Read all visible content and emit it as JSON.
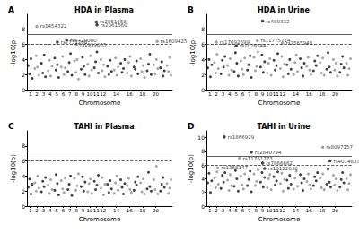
{
  "chart_data": [
    {
      "type": "scatter",
      "panel": "A",
      "title": "HDA in Plasma",
      "x_label": "Chromosome",
      "y_label": "-log10(p)",
      "marker": "circle",
      "colors": [
        "#111111",
        "#8f8f8f"
      ],
      "xlim": [
        0.5,
        22.5
      ],
      "xticks": [
        1,
        2,
        3,
        4,
        5,
        6,
        7,
        8,
        9,
        10,
        11,
        12,
        14,
        16,
        18,
        20
      ],
      "ylim": [
        0,
        10
      ],
      "yticks": [
        0,
        2,
        4,
        6,
        8
      ],
      "reference_lines": [
        {
          "value": 7.3,
          "line_style": "solid"
        },
        {
          "value": 6,
          "line_style": "dashed"
        }
      ],
      "x": [
        0.7,
        0.9,
        1.1,
        1.3,
        1.7,
        1.9,
        2.1,
        2.3,
        2.7,
        2.9,
        3.1,
        3.3,
        3.7,
        3.9,
        4.1,
        4.3,
        4.7,
        4.9,
        5.1,
        5.3,
        5.7,
        5.9,
        6.1,
        6.3,
        6.7,
        6.9,
        7.1,
        7.3,
        7.7,
        7.9,
        8.1,
        8.3,
        8.7,
        8.9,
        9.1,
        9.3,
        9.7,
        9.9,
        10.1,
        10.3,
        10.7,
        10.9,
        11.1,
        11.3,
        11.7,
        11.9,
        12.1,
        12.3,
        12.7,
        12.9,
        13.1,
        13.3,
        13.7,
        13.9,
        14.1,
        14.3,
        14.7,
        14.9,
        15.1,
        15.3,
        15.7,
        15.9,
        16.1,
        16.3,
        16.7,
        16.9,
        17.1,
        17.3,
        17.7,
        17.9,
        18.1,
        18.3,
        18.7,
        18.9,
        19.1,
        19.3,
        19.7,
        19.9,
        20.1,
        20.3,
        20.7,
        20.9,
        21.1,
        21.3,
        21.7,
        21.9,
        22.1,
        22.3
      ],
      "values": [
        3.2,
        2.1,
        4.1,
        1.5,
        2.8,
        4.5,
        3.0,
        1.9,
        3.5,
        2.2,
        4.6,
        1.7,
        2.5,
        3.9,
        1.8,
        3.1,
        4.2,
        2.6,
        3.3,
        1.6,
        3.0,
        4.4,
        2.0,
        2.9,
        2.4,
        3.6,
        4.8,
        1.9,
        3.8,
        2.3,
        4.0,
        1.4,
        2.7,
        4.3,
        3.1,
        2.0,
        3.4,
        1.8,
        4.5,
        2.6,
        2.9,
        3.7,
        5.0,
        2.2,
        4.0,
        2.5,
        3.3,
        1.7,
        3.1,
        2.0,
        3.9,
        2.4,
        2.6,
        4.2,
        1.9,
        3.0,
        3.5,
        2.3,
        2.8,
        4.0,
        2.2,
        3.6,
        4.4,
        1.8,
        3.0,
        2.7,
        3.8,
        2.1,
        4.1,
        2.4,
        3.2,
        1.6,
        2.5,
        3.4,
        4.7,
        2.0,
        3.3,
        2.1,
        4.0,
        2.8,
        2.9,
        3.7,
        1.8,
        2.5,
        3.2,
        2.4,
        4.3,
        1.9
      ],
      "annotations": [
        {
          "text": "rs1454322",
          "x": 2.0,
          "y": 8.4
        },
        {
          "text": "rs2061658",
          "x": 11.0,
          "y": 9.0
        },
        {
          "text": "rs2061660",
          "x": 11.1,
          "y": 8.6
        },
        {
          "text": "rs7731200",
          "x": 5.1,
          "y": 6.3
        },
        {
          "text": "rs6720000",
          "x": 6.5,
          "y": 6.6
        },
        {
          "text": "rs1999065",
          "x": 8.0,
          "y": 6.0
        },
        {
          "text": "rs1609425",
          "x": 20.2,
          "y": 6.4
        }
      ]
    },
    {
      "type": "scatter",
      "panel": "B",
      "title": "HDA in Urine",
      "x_label": "Chromosome",
      "y_label": "-log10(p)",
      "marker": "circle",
      "colors": [
        "#111111",
        "#8f8f8f"
      ],
      "xlim": [
        0.5,
        22.5
      ],
      "xticks": [
        1,
        2,
        3,
        4,
        5,
        6,
        7,
        8,
        9,
        10,
        11,
        12,
        14,
        16,
        18,
        20
      ],
      "ylim": [
        0,
        10
      ],
      "yticks": [
        0,
        2,
        4,
        6,
        8
      ],
      "reference_lines": [
        {
          "value": 7.3,
          "line_style": "solid"
        },
        {
          "value": 6,
          "line_style": "dashed"
        }
      ],
      "x": [
        0.7,
        0.9,
        1.1,
        1.3,
        1.7,
        1.9,
        2.1,
        2.3,
        2.7,
        2.9,
        3.1,
        3.3,
        3.7,
        3.9,
        4.1,
        4.3,
        4.7,
        4.9,
        5.1,
        5.3,
        5.7,
        5.9,
        6.1,
        6.3,
        6.7,
        6.9,
        7.1,
        7.3,
        7.7,
        7.9,
        8.1,
        8.3,
        8.7,
        8.9,
        9.1,
        9.3,
        9.7,
        9.9,
        10.1,
        10.3,
        10.7,
        10.9,
        11.1,
        11.3,
        11.7,
        11.9,
        12.1,
        12.3,
        12.7,
        12.9,
        13.1,
        13.3,
        13.7,
        13.9,
        14.1,
        14.3,
        14.7,
        14.9,
        15.1,
        15.3,
        15.7,
        15.9,
        16.1,
        16.3,
        16.7,
        16.9,
        17.1,
        17.3,
        17.7,
        17.9,
        18.1,
        18.3,
        18.7,
        18.9,
        19.1,
        19.3,
        19.7,
        19.9,
        20.1,
        20.3,
        20.7,
        20.9,
        21.1,
        21.3,
        21.7,
        21.9,
        22.1,
        22.3
      ],
      "values": [
        2.9,
        4.0,
        1.7,
        3.3,
        3.6,
        2.2,
        4.7,
        2.8,
        2.1,
        3.9,
        3.0,
        4.4,
        3.2,
        1.9,
        4.1,
        2.6,
        2.4,
        4.9,
        3.5,
        1.8,
        3.8,
        2.7,
        2.0,
        4.2,
        2.6,
        3.3,
        4.5,
        1.6,
        4.3,
        2.5,
        3.1,
        5.0,
        3.0,
        4.6,
        2.3,
        3.7,
        2.2,
        3.5,
        4.1,
        1.9,
        3.9,
        2.6,
        3.2,
        4.8,
        2.8,
        4.4,
        1.7,
        3.4,
        3.3,
        2.1,
        4.0,
        2.7,
        2.0,
        3.6,
        4.6,
        2.4,
        4.1,
        2.9,
        1.8,
        3.5,
        3.1,
        4.3,
        2.6,
        2.0,
        2.5,
        3.8,
        3.2,
        4.5,
        3.6,
        2.2,
        4.2,
        1.9,
        2.7,
        4.9,
        3.0,
        2.3,
        4.0,
        2.6,
        3.5,
        1.8,
        2.3,
        3.4,
        4.4,
        2.9,
        3.5,
        1.9,
        2.8,
        4.1
      ],
      "annotations": [
        {
          "text": "rs17692699",
          "x": 2.0,
          "y": 6.3
        },
        {
          "text": "rs1026544",
          "x": 5.0,
          "y": 5.8
        },
        {
          "text": "rs11775714",
          "x": 8.2,
          "y": 6.5
        },
        {
          "text": "rs489332",
          "x": 9.0,
          "y": 9.1
        },
        {
          "text": "rs2565949",
          "x": 12.0,
          "y": 6.2
        }
      ]
    },
    {
      "type": "scatter",
      "panel": "C",
      "title": "TAHI in Plasma",
      "x_label": "Chromosome",
      "y_label": "-log10(p)",
      "marker": "circle",
      "colors": [
        "#111111",
        "#8f8f8f"
      ],
      "xlim": [
        0.5,
        22.5
      ],
      "xticks": [
        1,
        2,
        3,
        4,
        5,
        6,
        7,
        8,
        9,
        10,
        11,
        12,
        14,
        16,
        18,
        20
      ],
      "ylim": [
        0,
        10
      ],
      "yticks": [
        0,
        2,
        4,
        6,
        8
      ],
      "reference_lines": [
        {
          "value": 7.3,
          "line_style": "solid"
        },
        {
          "value": 6,
          "line_style": "dashed"
        }
      ],
      "x": [
        0.7,
        0.9,
        1.1,
        1.3,
        1.7,
        1.9,
        2.1,
        2.3,
        2.7,
        2.9,
        3.1,
        3.3,
        3.7,
        3.9,
        4.1,
        4.3,
        4.7,
        4.9,
        5.1,
        5.3,
        5.7,
        5.9,
        6.1,
        6.3,
        6.7,
        6.9,
        7.1,
        7.3,
        7.7,
        7.9,
        8.1,
        8.3,
        8.7,
        8.9,
        9.1,
        9.3,
        9.7,
        9.9,
        10.1,
        10.3,
        10.7,
        10.9,
        11.1,
        11.3,
        11.7,
        11.9,
        12.1,
        12.3,
        12.7,
        12.9,
        13.1,
        13.3,
        13.7,
        13.9,
        14.1,
        14.3,
        14.7,
        14.9,
        15.1,
        15.3,
        15.7,
        15.9,
        16.1,
        16.3,
        16.7,
        16.9,
        17.1,
        17.3,
        17.7,
        17.9,
        18.1,
        18.3,
        18.7,
        18.9,
        19.1,
        19.3,
        19.7,
        19.9,
        20.1,
        20.3,
        20.7,
        20.9,
        21.1,
        21.3,
        21.7,
        21.9,
        22.1,
        22.3
      ],
      "values": [
        2.5,
        3.6,
        1.6,
        2.9,
        3.1,
        2.0,
        4.0,
        2.4,
        1.9,
        3.3,
        2.6,
        3.8,
        2.8,
        1.7,
        3.5,
        2.2,
        2.1,
        4.2,
        3.0,
        1.5,
        3.4,
        2.3,
        1.8,
        3.7,
        2.2,
        2.9,
        4.0,
        1.4,
        3.7,
        2.1,
        2.7,
        4.3,
        2.6,
        3.9,
        2.0,
        3.2,
        1.9,
        3.0,
        3.6,
        1.7,
        3.3,
        2.2,
        2.8,
        4.1,
        2.4,
        3.8,
        1.5,
        2.9,
        2.9,
        1.8,
        3.4,
        2.3,
        1.7,
        3.1,
        4.0,
        2.1,
        3.5,
        2.5,
        1.6,
        3.0,
        2.7,
        3.7,
        2.2,
        1.8,
        2.1,
        3.2,
        2.8,
        3.9,
        3.1,
        1.9,
        3.6,
        1.6,
        2.3,
        4.5,
        2.6,
        2.0,
        3.5,
        2.2,
        5.3,
        1.6,
        2.0,
        2.9,
        3.8,
        2.5,
        3.0,
        1.7,
        2.4,
        3.5
      ],
      "annotations": []
    },
    {
      "type": "scatter",
      "panel": "D",
      "title": "TAHI in Urine",
      "x_label": "Chromosome",
      "y_label": "-log10(p)",
      "marker": "circle",
      "colors": [
        "#111111",
        "#8f8f8f"
      ],
      "xlim": [
        0.5,
        22.5
      ],
      "xticks": [
        1,
        2,
        3,
        4,
        5,
        6,
        7,
        8,
        9,
        10,
        11,
        12,
        14,
        16,
        18,
        20
      ],
      "ylim": [
        0,
        11
      ],
      "yticks": [
        0,
        2,
        4,
        6,
        8,
        10
      ],
      "reference_lines": [
        {
          "value": 7.3,
          "line_style": "solid"
        },
        {
          "value": 6,
          "line_style": "dashed"
        }
      ],
      "x": [
        0.7,
        0.9,
        1.1,
        1.3,
        1.7,
        1.9,
        2.1,
        2.3,
        2.7,
        2.9,
        3.1,
        3.3,
        3.7,
        3.9,
        4.1,
        4.3,
        4.7,
        4.9,
        5.1,
        5.3,
        5.7,
        5.9,
        6.1,
        6.3,
        6.7,
        6.9,
        7.1,
        7.3,
        7.7,
        7.9,
        8.1,
        8.3,
        8.7,
        8.9,
        9.1,
        9.3,
        9.7,
        9.9,
        10.1,
        10.3,
        10.7,
        10.9,
        11.1,
        11.3,
        11.7,
        11.9,
        12.1,
        12.3,
        12.7,
        12.9,
        13.1,
        13.3,
        13.7,
        13.9,
        14.1,
        14.3,
        14.7,
        14.9,
        15.1,
        15.3,
        15.7,
        15.9,
        16.1,
        16.3,
        16.7,
        16.9,
        17.1,
        17.3,
        17.7,
        17.9,
        18.1,
        18.3,
        18.7,
        18.9,
        19.1,
        19.3,
        19.7,
        19.9,
        20.1,
        20.3,
        20.7,
        20.9,
        21.1,
        21.3,
        21.7,
        21.9,
        22.1,
        22.3
      ],
      "values": [
        3.4,
        4.8,
        2.0,
        3.7,
        4.1,
        2.7,
        5.0,
        3.2,
        2.6,
        4.5,
        3.5,
        4.9,
        3.8,
        2.3,
        4.6,
        3.0,
        2.9,
        5.2,
        4.0,
        2.2,
        4.4,
        3.1,
        2.5,
        4.7,
        3.0,
        3.9,
        5.1,
        2.1,
        4.7,
        3.0,
        3.6,
        5.3,
        3.5,
        4.9,
        2.8,
        4.2,
        2.7,
        4.0,
        4.6,
        2.4,
        4.3,
        3.1,
        3.7,
        5.0,
        3.3,
        4.8,
        2.2,
        3.9,
        3.8,
        2.6,
        4.5,
        3.2,
        2.5,
        4.1,
        5.1,
        2.9,
        4.6,
        3.4,
        2.3,
        4.0,
        3.6,
        4.7,
        3.1,
        2.5,
        3.0,
        4.3,
        3.7,
        4.9,
        4.1,
        2.7,
        4.7,
        2.4,
        3.2,
        5.4,
        3.5,
        2.8,
        4.5,
        3.1,
        4.0,
        2.3,
        2.8,
        3.9,
        4.9,
        3.4,
        4.0,
        2.4,
        3.3,
        4.6
      ],
      "annotations": [
        {
          "text": "rs1866929",
          "x": 3.2,
          "y": 10.1
        },
        {
          "text": "rs11761773",
          "x": 5.5,
          "y": 7.0
        },
        {
          "text": "rs2840794",
          "x": 7.3,
          "y": 7.9
        },
        {
          "text": "rs1368147",
          "x": 2.2,
          "y": 5.6
        },
        {
          "text": "rs7866662",
          "x": 9.0,
          "y": 6.3
        },
        {
          "text": "rs10122030",
          "x": 9.3,
          "y": 5.5
        },
        {
          "text": "rs8097157",
          "x": 18.1,
          "y": 8.6
        },
        {
          "text": "rs4074833",
          "x": 19.2,
          "y": 6.6
        }
      ]
    }
  ]
}
